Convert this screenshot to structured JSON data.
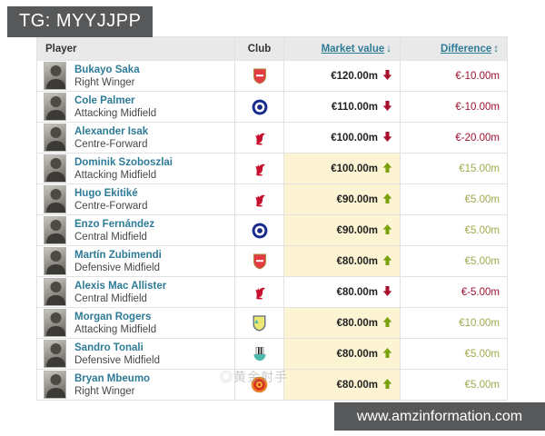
{
  "page": {
    "tg_badge": "TG: MYYJJPP",
    "bottom_watermark": "www.amzinformation.com",
    "inline_watermark": "◎黄金射手"
  },
  "table": {
    "headers": {
      "player": "Player",
      "club": "Club",
      "market_value": "Market value",
      "market_value_sort_icon": "↓",
      "difference": "Difference",
      "difference_sort_icon": "↕"
    },
    "rows": [
      {
        "name": "Bukayo Saka",
        "position": "Right Winger",
        "club_icon": "arsenal",
        "value": "€120.00m",
        "trend": "down",
        "diff": "€-10.00m",
        "highlight": false
      },
      {
        "name": "Cole Palmer",
        "position": "Attacking Midfield",
        "club_icon": "chelsea",
        "value": "€110.00m",
        "trend": "down",
        "diff": "€-10.00m",
        "highlight": false
      },
      {
        "name": "Alexander Isak",
        "position": "Centre-Forward",
        "club_icon": "liverpool",
        "value": "€100.00m",
        "trend": "down",
        "diff": "€-20.00m",
        "highlight": false
      },
      {
        "name": "Dominik Szoboszlai",
        "position": "Attacking Midfield",
        "club_icon": "liverpool",
        "value": "€100.00m",
        "trend": "up",
        "diff": "€15.00m",
        "highlight": true
      },
      {
        "name": "Hugo Ekitiké",
        "position": "Centre-Forward",
        "club_icon": "liverpool",
        "value": "€90.00m",
        "trend": "up",
        "diff": "€5.00m",
        "highlight": true
      },
      {
        "name": "Enzo Fernández",
        "position": "Central Midfield",
        "club_icon": "chelsea",
        "value": "€90.00m",
        "trend": "up",
        "diff": "€5.00m",
        "highlight": true
      },
      {
        "name": "Martín Zubimendi",
        "position": "Defensive Midfield",
        "club_icon": "arsenal",
        "value": "€80.00m",
        "trend": "up",
        "diff": "€5.00m",
        "highlight": true
      },
      {
        "name": "Alexis Mac Allister",
        "position": "Central Midfield",
        "club_icon": "liverpool",
        "value": "€80.00m",
        "trend": "down",
        "diff": "€-5.00m",
        "highlight": false
      },
      {
        "name": "Morgan Rogers",
        "position": "Attacking Midfield",
        "club_icon": "astonvilla",
        "value": "€80.00m",
        "trend": "up",
        "diff": "€10.00m",
        "highlight": true
      },
      {
        "name": "Sandro Tonali",
        "position": "Defensive Midfield",
        "club_icon": "newcastle",
        "value": "€80.00m",
        "trend": "up",
        "diff": "€5.00m",
        "highlight": true
      },
      {
        "name": "Bryan Mbeumo",
        "position": "Right Winger",
        "club_icon": "manutd",
        "value": "€80.00m",
        "trend": "up",
        "diff": "€5.00m",
        "highlight": true
      }
    ]
  },
  "colors": {
    "accent_link": "#2e7b97",
    "positive_arrow": "#7aa10a",
    "negative_arrow": "#a70f2d",
    "positive_text": "#a0a94c",
    "negative_text": "#9c1030",
    "highlight_bg": "#fcf4d3",
    "badge_bg": "#57585a",
    "header_bg": "#e9e9e9"
  }
}
